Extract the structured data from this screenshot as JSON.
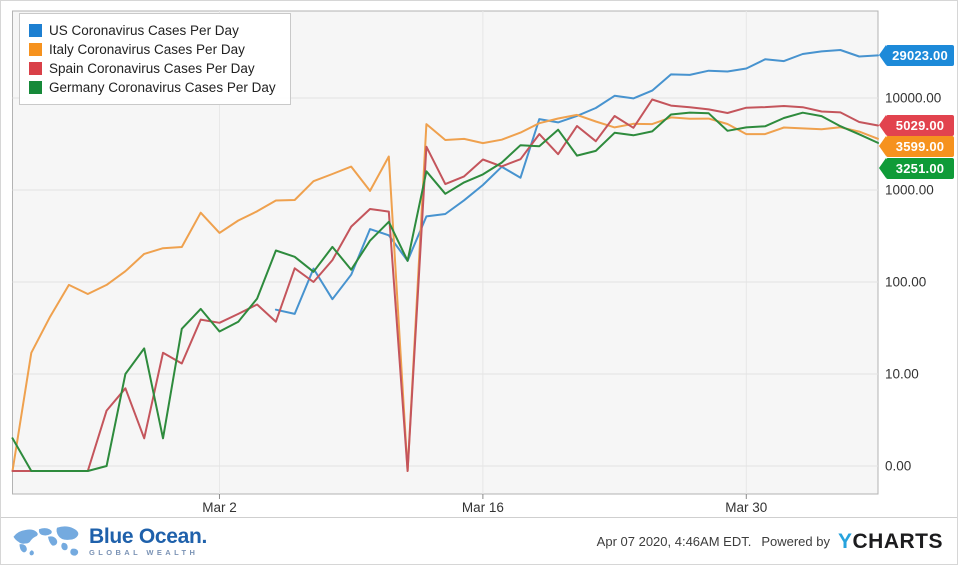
{
  "chart_data": {
    "type": "line",
    "title": "",
    "y_axis": {
      "scale": "log",
      "ticks": [
        {
          "value": 10000,
          "label": "10000.00"
        },
        {
          "value": 1000,
          "label": "1000.00"
        },
        {
          "value": 100,
          "label": "100.00"
        },
        {
          "value": 10,
          "label": "10.00"
        },
        {
          "value": 0,
          "label": "0.00"
        }
      ]
    },
    "x_axis": {
      "dates": [
        "Feb 20",
        "Feb 21",
        "Feb 22",
        "Feb 23",
        "Feb 24",
        "Feb 25",
        "Feb 26",
        "Feb 27",
        "Feb 28",
        "Feb 29",
        "Mar 1",
        "Mar 2",
        "Mar 3",
        "Mar 4",
        "Mar 5",
        "Mar 6",
        "Mar 7",
        "Mar 8",
        "Mar 9",
        "Mar 10",
        "Mar 11",
        "Mar 12",
        "Mar 13",
        "Mar 14",
        "Mar 15",
        "Mar 16",
        "Mar 17",
        "Mar 18",
        "Mar 19",
        "Mar 20",
        "Mar 21",
        "Mar 22",
        "Mar 23",
        "Mar 24",
        "Mar 25",
        "Mar 26",
        "Mar 27",
        "Mar 28",
        "Mar 29",
        "Mar 30",
        "Mar 31",
        "Apr 1",
        "Apr 2",
        "Apr 3",
        "Apr 4",
        "Apr 5",
        "Apr 6"
      ],
      "ticks": [
        {
          "index": 11,
          "label": "Mar 2"
        },
        {
          "index": 25,
          "label": "Mar 16"
        },
        {
          "index": 39,
          "label": "Mar 30"
        }
      ]
    },
    "legend_position": "top-left",
    "grid": true,
    "series": [
      {
        "name": "US Coronavirus Cases Per Day",
        "line_color": "#4793cf",
        "swatch_color": "#1d7fd1",
        "badge_color": "#1d8ad9",
        "end_label": "29023.00",
        "values": [
          null,
          null,
          null,
          null,
          null,
          null,
          null,
          null,
          null,
          null,
          null,
          null,
          null,
          null,
          50,
          45,
          140,
          65,
          120,
          376,
          322,
          170,
          516,
          548,
          772,
          1133,
          1789,
          1362,
          5894,
          5423,
          6389,
          7787,
          10571,
          9893,
          12038,
          18058,
          17821,
          19821,
          19408,
          20921,
          26365,
          25200,
          30081,
          32133,
          33264,
          28222,
          29023
        ]
      },
      {
        "name": "Italy Coronavirus Cases Per Day",
        "line_color": "#efa14e",
        "swatch_color": "#f6921e",
        "badge_color": "#f6921e",
        "end_label": "3599.00",
        "values": [
          0,
          17,
          42,
          93,
          74,
          93,
          131,
          202,
          233,
          240,
          566,
          342,
          466,
          587,
          769,
          778,
          1247,
          1492,
          1797,
          977,
          2313,
          0,
          5198,
          3497,
          3590,
          3233,
          3526,
          4207,
          5322,
          5986,
          6557,
          5560,
          4789,
          5249,
          5210,
          6153,
          5959,
          5974,
          5217,
          4050,
          4053,
          4782,
          4668,
          4585,
          4805,
          4316,
          3599
        ]
      },
      {
        "name": "Spain Coronavirus Cases Per Day",
        "line_color": "#c4555c",
        "swatch_color": "#d94048",
        "badge_color": "#e2434e",
        "end_label": "5029.00",
        "values": [
          0,
          0,
          0,
          0,
          0,
          4,
          7,
          2,
          17,
          13,
          39,
          36,
          45,
          57,
          37,
          141,
          100,
          173,
          400,
          622,
          582,
          0,
          2955,
          1159,
          1407,
          2144,
          1806,
          2162,
          4053,
          2447,
          4964,
          3394,
          6368,
          4749,
          9630,
          8271,
          7933,
          7516,
          6875,
          7846,
          7967,
          8195,
          7947,
          7134,
          6969,
          5478,
          5029
        ]
      },
      {
        "name": "Germany Coronavirus Cases Per Day",
        "line_color": "#2e8b3d",
        "swatch_color": "#168939",
        "badge_color": "#0f9b38",
        "end_label": "3251.00",
        "values": [
          2,
          0,
          0,
          0,
          0,
          1,
          10,
          19,
          2,
          31,
          51,
          29,
          37,
          66,
          220,
          188,
          129,
          241,
          136,
          281,
          451,
          170,
          1597,
          910,
          1210,
          1477,
          1985,
          3070,
          2993,
          4528,
          2365,
          2660,
          4183,
          3930,
          4337,
          6615,
          6933,
          6824,
          4400,
          4790,
          4923,
          6064,
          6922,
          6365,
          4933,
          4031,
          3251
        ]
      }
    ]
  },
  "footer": {
    "brand_name": "Blue Ocean",
    "brand_suffix": ".",
    "brand_tagline": "GLOBAL WEALTH",
    "timestamp": "Apr 07 2020, 4:46AM EDT.",
    "powered_by": "Powered by",
    "logo_y": "Y",
    "logo_charts": "CHARTS"
  }
}
